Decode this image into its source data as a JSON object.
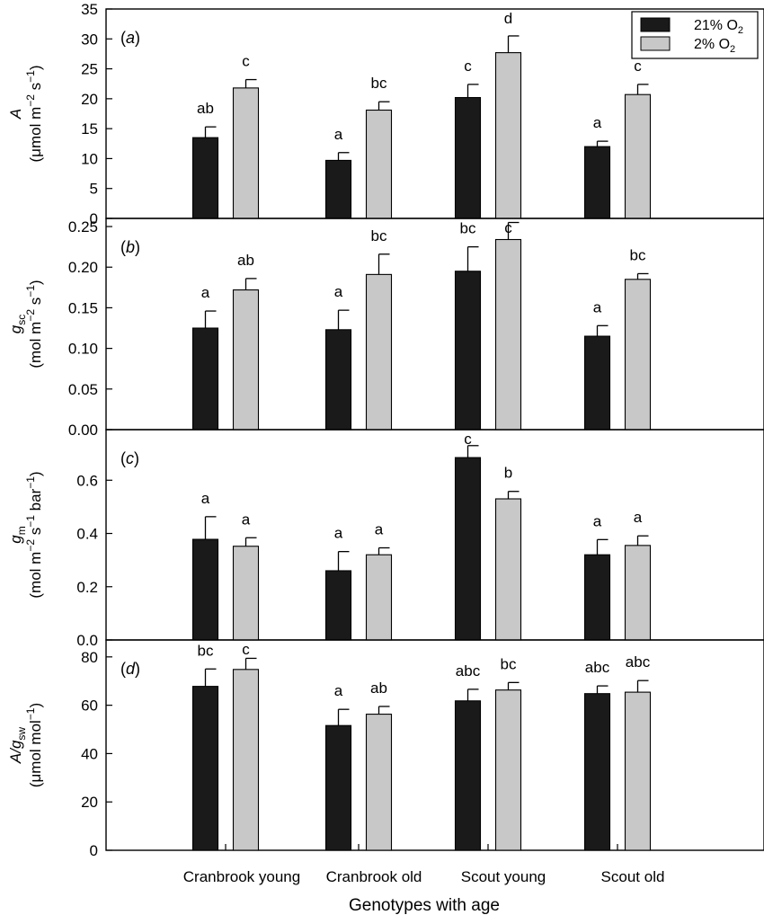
{
  "colors": {
    "o2_21": "#1a1a1a",
    "o2_2": "#c8c8c8",
    "axis": "#000000"
  },
  "legend": {
    "entries": [
      {
        "pre": "21% O",
        "sub": "2"
      },
      {
        "pre": "2% O",
        "sub": "2"
      }
    ],
    "placement": "top-right"
  },
  "xaxis": {
    "title": "Genotypes with age",
    "categories": [
      "Cranbrook young",
      "Cranbrook old",
      "Scout young",
      "Scout old"
    ]
  },
  "chart_data": [
    {
      "type": "bar",
      "panel": "(a)",
      "ylabel": {
        "var": "A",
        "unit_parts": [
          "(μmol m",
          "−2",
          " s",
          "−1",
          ")"
        ]
      },
      "ylim": [
        0,
        35
      ],
      "yticks": [
        "0",
        "5",
        "10",
        "15",
        "20",
        "25",
        "30",
        "35"
      ],
      "categories": [
        "Cranbrook young",
        "Cranbrook old",
        "Scout young",
        "Scout old"
      ],
      "series": [
        {
          "name": "21% O2",
          "values": [
            13.5,
            9.7,
            20.2,
            12.0
          ],
          "errors": [
            1.8,
            1.3,
            2.2,
            0.9
          ],
          "labels": [
            "ab",
            "a",
            "c",
            "a"
          ]
        },
        {
          "name": "2% O2",
          "values": [
            21.8,
            18.1,
            27.7,
            20.7
          ],
          "errors": [
            1.4,
            1.4,
            2.8,
            1.7
          ],
          "labels": [
            "c",
            "bc",
            "d",
            "c"
          ]
        }
      ]
    },
    {
      "type": "bar",
      "panel": "(b)",
      "ylabel": {
        "var": "g",
        "sub": "sc",
        "unit_parts": [
          "(mol m",
          "−2",
          " s",
          "−1",
          ")"
        ]
      },
      "ylim": [
        0,
        0.26
      ],
      "yticks": [
        "0.00",
        "0.05",
        "0.10",
        "0.15",
        "0.20",
        "0.25"
      ],
      "categories": [
        "Cranbrook young",
        "Cranbrook old",
        "Scout young",
        "Scout old"
      ],
      "series": [
        {
          "name": "21% O2",
          "values": [
            0.125,
            0.123,
            0.195,
            0.115
          ],
          "errors": [
            0.021,
            0.024,
            0.03,
            0.013
          ],
          "labels": [
            "a",
            "a",
            "bc",
            "a"
          ]
        },
        {
          "name": "2% O2",
          "values": [
            0.172,
            0.191,
            0.234,
            0.185
          ],
          "errors": [
            0.014,
            0.025,
            0.021,
            0.007
          ],
          "labels": [
            "ab",
            "bc",
            "c",
            "bc"
          ]
        }
      ]
    },
    {
      "type": "bar",
      "panel": "(c)",
      "ylabel": {
        "var": "g",
        "sub": "m",
        "unit_parts": [
          "(mol m",
          "−2",
          " s",
          "−1",
          " bar",
          "−1",
          ")"
        ]
      },
      "ylim": [
        0,
        0.79
      ],
      "yticks": [
        "0.0",
        "0.2",
        "0.4",
        "0.6"
      ],
      "categories": [
        "Cranbrook young",
        "Cranbrook old",
        "Scout young",
        "Scout old"
      ],
      "series": [
        {
          "name": "21% O2",
          "values": [
            0.378,
            0.26,
            0.685,
            0.32
          ],
          "errors": [
            0.085,
            0.072,
            0.045,
            0.057
          ],
          "labels": [
            "a",
            "a",
            "c",
            "a"
          ]
        },
        {
          "name": "2% O2",
          "values": [
            0.352,
            0.32,
            0.53,
            0.355
          ],
          "errors": [
            0.032,
            0.026,
            0.028,
            0.036
          ],
          "labels": [
            "a",
            "a",
            "b",
            "a"
          ]
        }
      ]
    },
    {
      "type": "bar",
      "panel": "(d)",
      "ylabel": {
        "var": "A/g",
        "sub": "sw",
        "unit_parts": [
          "(μmol mol",
          "−1",
          ")"
        ]
      },
      "ylim": [
        0,
        87
      ],
      "yticks": [
        "0",
        "20",
        "40",
        "60",
        "80"
      ],
      "categories": [
        "Cranbrook young",
        "Cranbrook old",
        "Scout young",
        "Scout old"
      ],
      "series": [
        {
          "name": "21% O2",
          "values": [
            67.8,
            51.6,
            61.8,
            64.8
          ],
          "errors": [
            7.2,
            6.7,
            4.8,
            3.2
          ],
          "labels": [
            "bc",
            "a",
            "abc",
            "abc"
          ]
        },
        {
          "name": "2% O2",
          "values": [
            74.8,
            56.3,
            66.3,
            65.4
          ],
          "errors": [
            4.6,
            3.2,
            3.1,
            4.8
          ],
          "labels": [
            "c",
            "ab",
            "bc",
            "abc"
          ]
        }
      ]
    }
  ]
}
